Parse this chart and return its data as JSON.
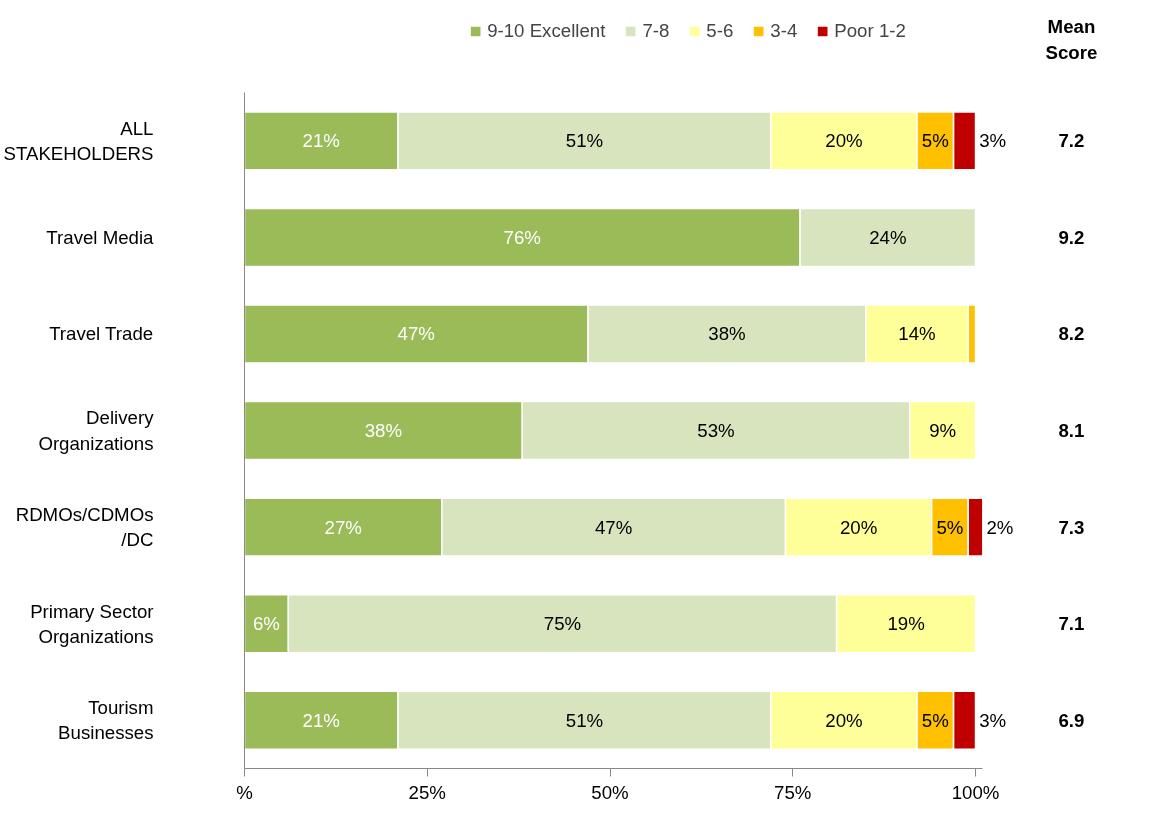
{
  "chart_data": {
    "type": "bar",
    "orientation": "horizontal",
    "stacked": true,
    "categories": [
      "ALL\nSTAKEHOLDERS",
      "Travel Media",
      "Travel Trade",
      "Delivery\nOrganizations",
      "RDMOs/CDMOs\n/DC",
      "Primary Sector\nOrganizations",
      "Tourism\nBusinesses"
    ],
    "series": [
      {
        "name": "9-10 Excellent",
        "color": "#9bbb59",
        "values": [
          21,
          76,
          47,
          38,
          27,
          6,
          21
        ],
        "value_labels": [
          "21%",
          "76%",
          "47%",
          "38%",
          "27%",
          "6%",
          "21%"
        ]
      },
      {
        "name": "7-8",
        "color": "#d7e4bd",
        "values": [
          51,
          24,
          38,
          53,
          47,
          75,
          51
        ],
        "value_labels": [
          "51%",
          "24%",
          "38%",
          "53%",
          "47%",
          "75%",
          "51%"
        ]
      },
      {
        "name": "5-6",
        "color": "#ffff99",
        "values": [
          20,
          null,
          14,
          9,
          20,
          19,
          20
        ],
        "value_labels": [
          "20%",
          null,
          "14%",
          "9%",
          "20%",
          "19%",
          "20%"
        ]
      },
      {
        "name": "3-4",
        "color": "#ffc000",
        "values": [
          5,
          null,
          1,
          null,
          5,
          null,
          5
        ],
        "value_labels": [
          "5%",
          null,
          null,
          null,
          "5%",
          null,
          "5%"
        ]
      },
      {
        "name": "Poor 1-2",
        "color": "#c00000",
        "values": [
          3,
          null,
          null,
          null,
          2,
          null,
          3
        ],
        "value_labels": [
          "3%",
          null,
          null,
          null,
          "2%",
          null,
          "3%"
        ]
      }
    ],
    "xlim": [
      0,
      101
    ],
    "xticks": [
      {
        "value": 0,
        "label": "%"
      },
      {
        "value": 25,
        "label": "25%"
      },
      {
        "value": 50,
        "label": "50%"
      },
      {
        "value": 75,
        "label": "75%"
      },
      {
        "value": 100,
        "label": "100%"
      }
    ],
    "grid": false,
    "legend": "top",
    "annotations": [
      "Mean\nScore",
      "7.2",
      "9.2",
      "8.2",
      "8.1",
      "7.3",
      "7.1",
      "6.9"
    ]
  }
}
